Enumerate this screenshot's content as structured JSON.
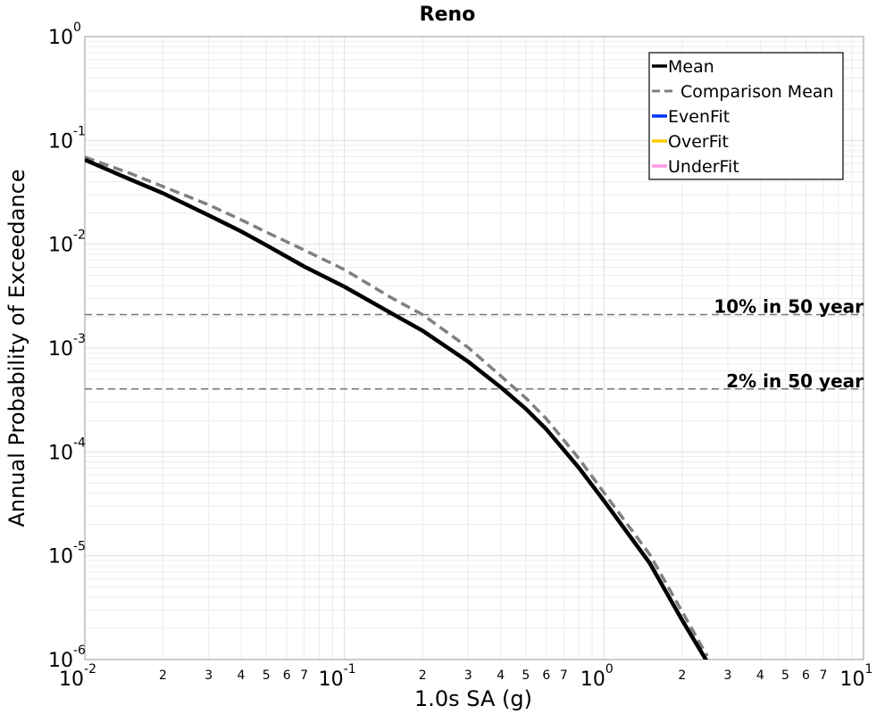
{
  "chart_data": {
    "type": "line",
    "title": "Reno",
    "xlabel": "1.0s SA (g)",
    "ylabel": "Annual Probability of Exceedance",
    "x_scale": "log",
    "y_scale": "log",
    "xlim": [
      0.01,
      10
    ],
    "ylim": [
      1e-06,
      1
    ],
    "grid": true,
    "legend_position": "top-right",
    "x_major_ticks": [
      {
        "base": "10",
        "exp": "-2"
      },
      {
        "base": "10",
        "exp": "-1"
      },
      {
        "base": "10",
        "exp": "0"
      },
      {
        "base": "10",
        "exp": "1"
      }
    ],
    "y_major_ticks": [
      {
        "base": "10",
        "exp": "0"
      },
      {
        "base": "10",
        "exp": "-1"
      },
      {
        "base": "10",
        "exp": "-2"
      },
      {
        "base": "10",
        "exp": "-3"
      },
      {
        "base": "10",
        "exp": "-4"
      },
      {
        "base": "10",
        "exp": "-5"
      },
      {
        "base": "10",
        "exp": "-6"
      }
    ],
    "x_minor_tick_labels": [
      "2",
      "3",
      "4",
      "5",
      "6",
      "7"
    ],
    "series": [
      {
        "name": "Mean",
        "color": "#000000",
        "style": "solid",
        "x": [
          0.01,
          0.015,
          0.02,
          0.03,
          0.04,
          0.05,
          0.07,
          0.1,
          0.15,
          0.2,
          0.3,
          0.4,
          0.5,
          0.6,
          0.8,
          1.0,
          1.5,
          2.0,
          2.5
        ],
        "y": [
          0.065,
          0.042,
          0.031,
          0.019,
          0.0133,
          0.0098,
          0.0061,
          0.0039,
          0.0022,
          0.00147,
          0.00074,
          0.00042,
          0.00026,
          0.000165,
          7.05e-05,
          3.38e-05,
          8.5e-06,
          2.4e-06,
          9.5e-07
        ]
      },
      {
        "name": "Comparison Mean",
        "color": "#808080",
        "style": "dashed",
        "x": [
          0.01,
          0.015,
          0.02,
          0.03,
          0.04,
          0.05,
          0.07,
          0.1,
          0.15,
          0.2,
          0.3,
          0.4,
          0.5,
          0.6,
          0.8,
          1.0,
          1.5,
          2.0,
          2.5
        ],
        "y": [
          0.069,
          0.048,
          0.036,
          0.024,
          0.0172,
          0.0131,
          0.0088,
          0.0057,
          0.0031,
          0.0021,
          0.00101,
          0.00054,
          0.00033,
          0.000208,
          8.65e-05,
          4.05e-05,
          1.03e-05,
          2.9e-06,
          1.08e-06
        ]
      },
      {
        "name": "EvenFit",
        "color": "#0033ff",
        "style": "solid",
        "x": [],
        "y": []
      },
      {
        "name": "OverFit",
        "color": "#ffcc00",
        "style": "solid",
        "x": [],
        "y": []
      },
      {
        "name": "UnderFit",
        "color": "#ff99e6",
        "style": "solid",
        "x": [],
        "y": []
      }
    ],
    "reference_lines": [
      {
        "label": "10% in 50 year",
        "y": 0.0021
      },
      {
        "label": "2% in 50 year",
        "y": 0.000404
      }
    ]
  }
}
